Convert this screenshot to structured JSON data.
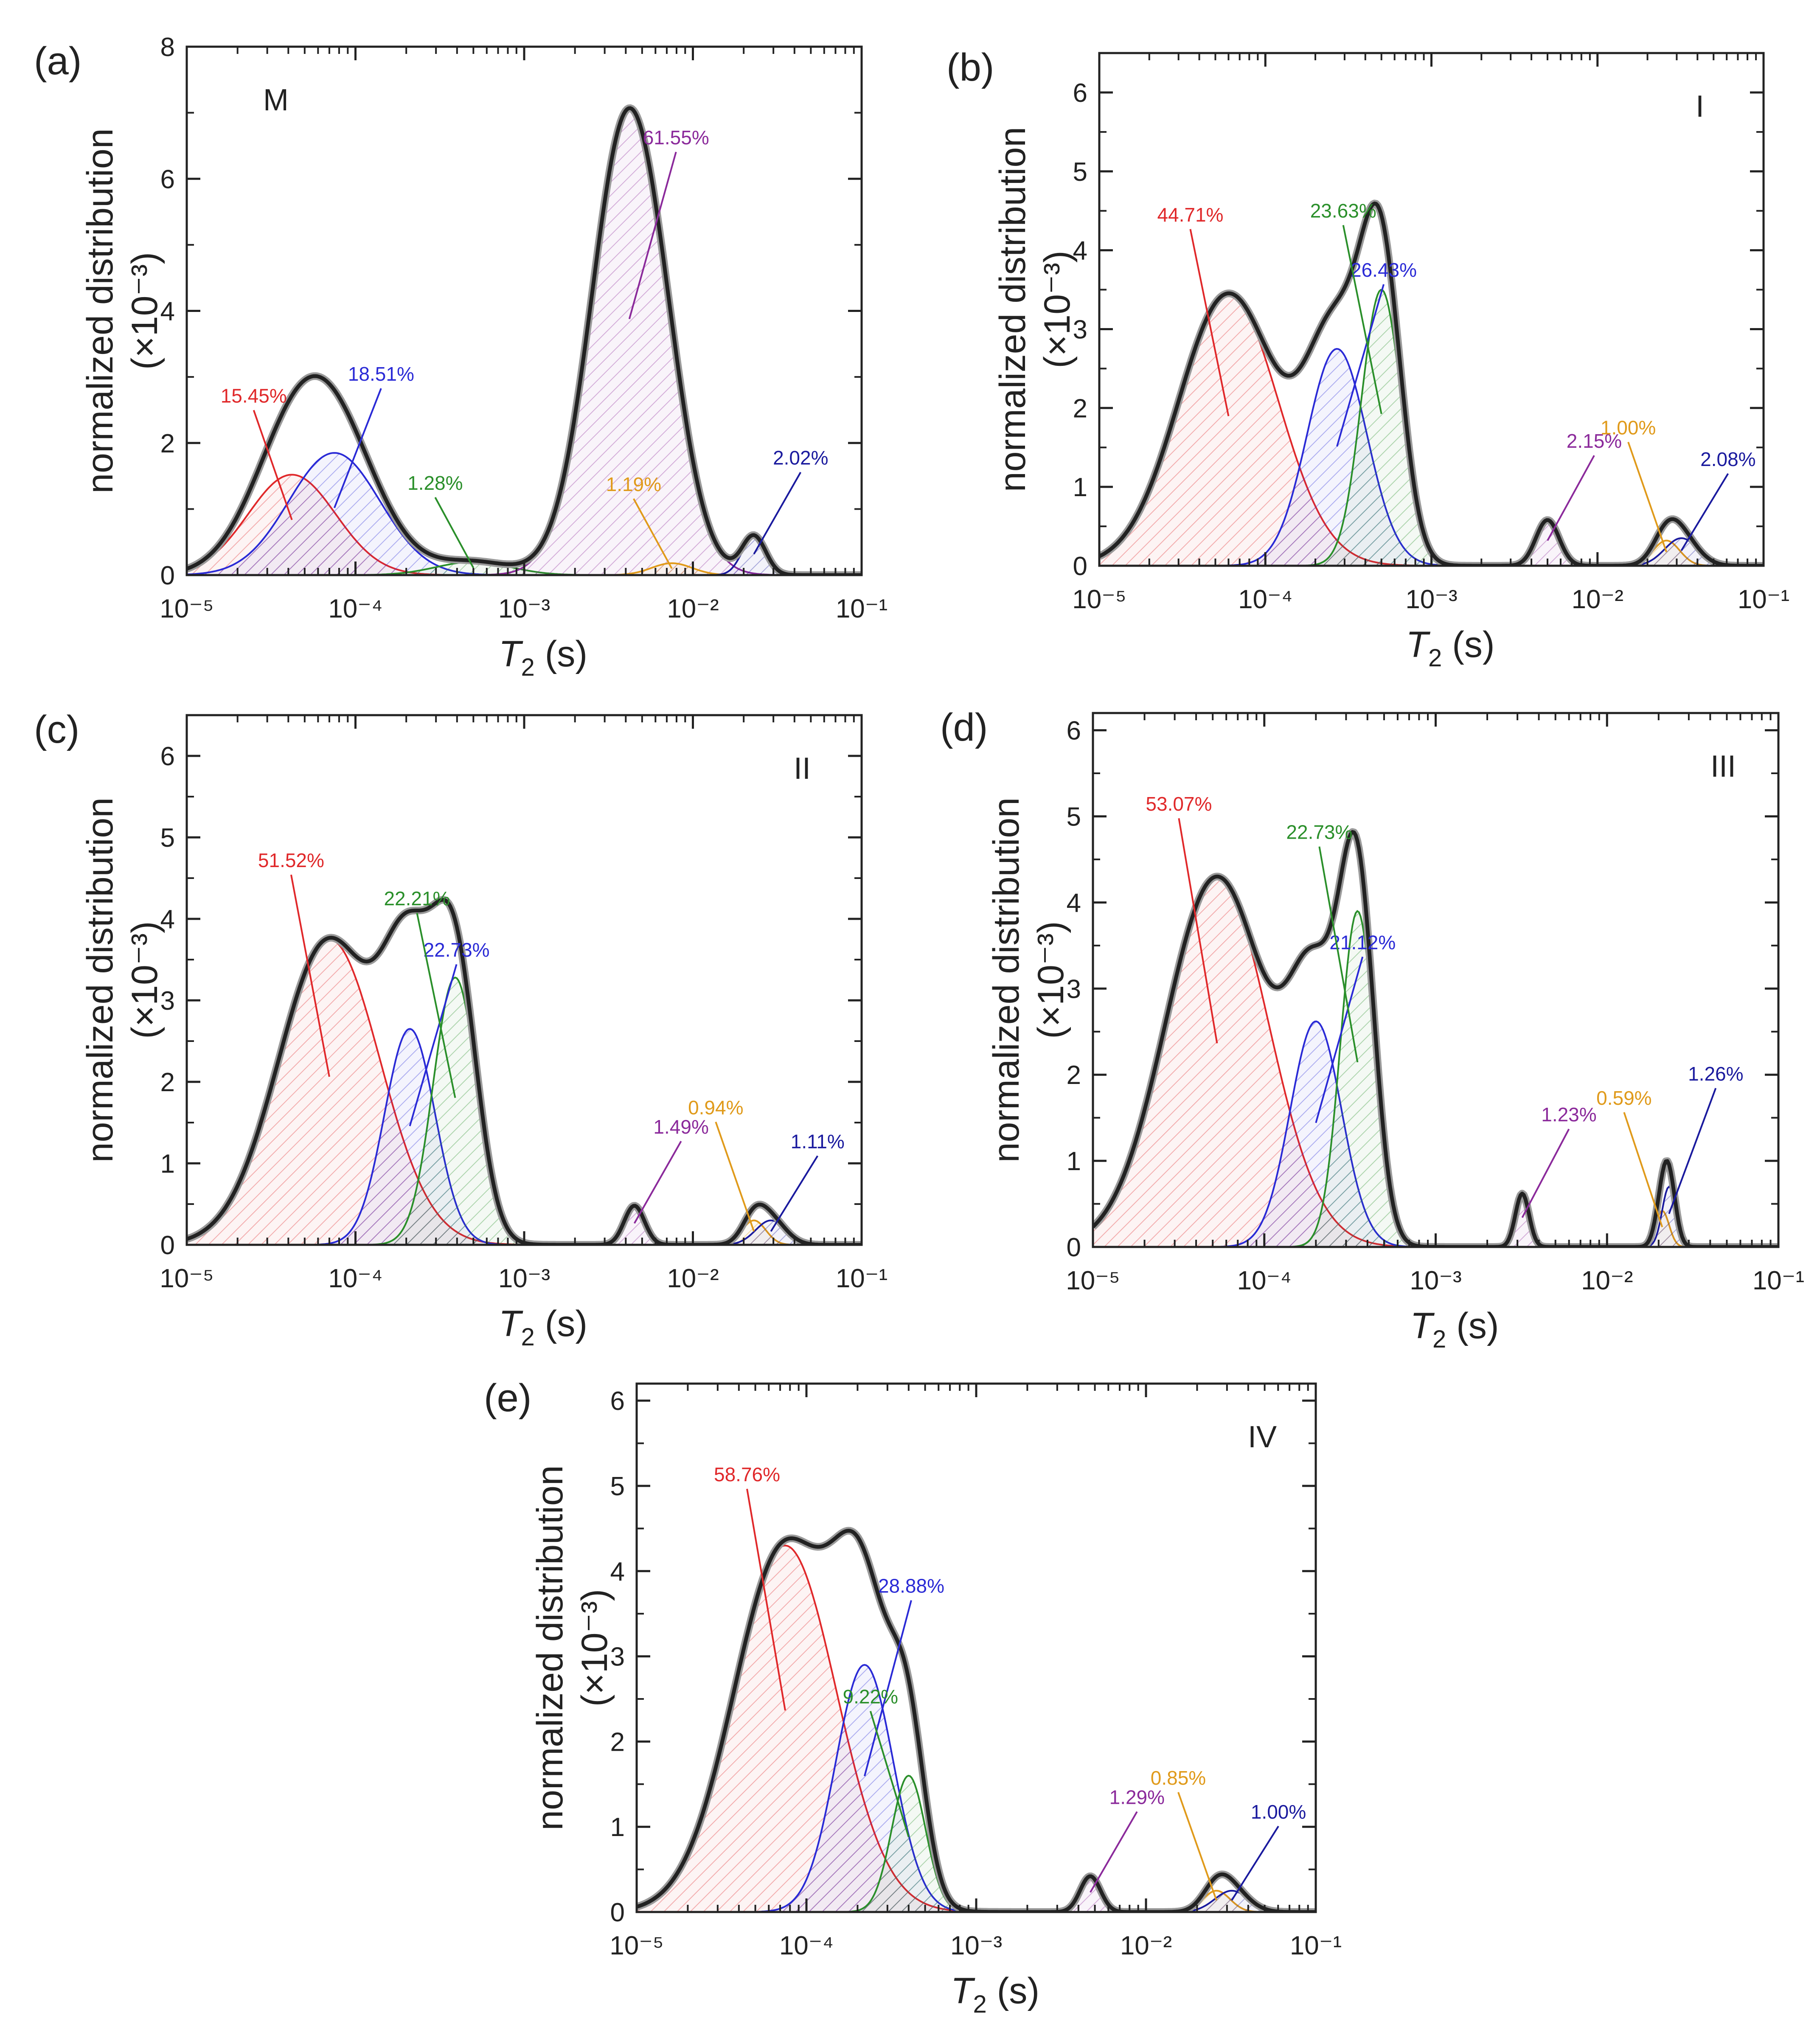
{
  "figure": {
    "xlabel_main": "T",
    "xlabel_sub": "2",
    "xlabel_unit": " (s)",
    "ylabel_line1": "normalized distribution",
    "ylabel_line2": "(×10⁻³)",
    "x_tick_labels": [
      "10⁻⁵",
      "10⁻⁴",
      "10⁻³",
      "10⁻²",
      "10⁻¹"
    ]
  },
  "colors": {
    "total": "#222222",
    "red": "#e0282a",
    "blue": "#2a2ad6",
    "green": "#2a8f2a",
    "purple": "#8b2a9b",
    "orange": "#e09a1a",
    "navy": "#1a1a9e"
  },
  "chart_data": [
    {
      "type": "line",
      "panel": "(a)",
      "sample": "M",
      "xscale": "log",
      "xlim": [
        1e-05,
        0.1
      ],
      "ylim": [
        0,
        8
      ],
      "y_ticks": [
        0,
        2,
        4,
        6,
        8
      ],
      "peaks": [
        {
          "color": "red",
          "center": 4.2e-05,
          "height": 1.52,
          "width": 0.26,
          "label": "15.45%"
        },
        {
          "color": "blue",
          "center": 7.5e-05,
          "height": 1.85,
          "width": 0.27,
          "label": "18.51%"
        },
        {
          "color": "green",
          "center": 0.0005,
          "height": 0.2,
          "width": 0.22,
          "label": "1.28%"
        },
        {
          "color": "purple",
          "center": 0.0042,
          "height": 7.05,
          "width": 0.22,
          "label": "61.55%"
        },
        {
          "color": "orange",
          "center": 0.0075,
          "height": 0.18,
          "width": 0.12,
          "label": "1.19%"
        },
        {
          "color": "navy",
          "center": 0.023,
          "height": 0.58,
          "width": 0.07,
          "label": "2.02%"
        }
      ]
    },
    {
      "type": "line",
      "panel": "(b)",
      "sample": "I",
      "xscale": "log",
      "xlim": [
        1e-05,
        0.1
      ],
      "ylim": [
        0,
        6.5
      ],
      "y_ticks": [
        0,
        1,
        2,
        3,
        4,
        5,
        6
      ],
      "peaks": [
        {
          "color": "red",
          "center": 6e-05,
          "height": 3.45,
          "width": 0.3,
          "label": "44.71%"
        },
        {
          "color": "blue",
          "center": 0.00027,
          "height": 2.75,
          "width": 0.18,
          "label": "26.43%"
        },
        {
          "color": "green",
          "center": 0.0005,
          "height": 3.5,
          "width": 0.12,
          "label": "23.63%"
        },
        {
          "color": "purple",
          "center": 0.005,
          "height": 0.58,
          "width": 0.07,
          "label": "2.15%"
        },
        {
          "color": "orange",
          "center": 0.026,
          "height": 0.32,
          "width": 0.08,
          "label": "1.00%"
        },
        {
          "color": "navy",
          "center": 0.032,
          "height": 0.35,
          "width": 0.1,
          "label": "2.08%"
        }
      ]
    },
    {
      "type": "line",
      "panel": "(c)",
      "sample": "II",
      "xscale": "log",
      "xlim": [
        1e-05,
        0.1
      ],
      "ylim": [
        0,
        6.5
      ],
      "y_ticks": [
        0,
        1,
        2,
        3,
        4,
        5,
        6
      ],
      "peaks": [
        {
          "color": "red",
          "center": 7e-05,
          "height": 3.75,
          "width": 0.3,
          "label": "51.52%"
        },
        {
          "color": "blue",
          "center": 0.00021,
          "height": 2.65,
          "width": 0.15,
          "label": "22.73%"
        },
        {
          "color": "green",
          "center": 0.00039,
          "height": 3.28,
          "width": 0.13,
          "label": "22.21%"
        },
        {
          "color": "purple",
          "center": 0.0045,
          "height": 0.48,
          "width": 0.06,
          "label": "1.49%"
        },
        {
          "color": "orange",
          "center": 0.023,
          "height": 0.3,
          "width": 0.07,
          "label": "0.94%"
        },
        {
          "color": "navy",
          "center": 0.029,
          "height": 0.3,
          "width": 0.09,
          "label": "1.11%"
        }
      ]
    },
    {
      "type": "line",
      "panel": "(d)",
      "sample": "III",
      "xscale": "log",
      "xlim": [
        1e-05,
        0.1
      ],
      "ylim": [
        0,
        6.2
      ],
      "y_ticks": [
        0,
        1,
        2,
        3,
        4,
        5,
        6
      ],
      "peaks": [
        {
          "color": "red",
          "center": 5.3e-05,
          "height": 4.3,
          "width": 0.3,
          "label": "53.07%"
        },
        {
          "color": "blue",
          "center": 0.0002,
          "height": 2.62,
          "width": 0.15,
          "label": "21.12%"
        },
        {
          "color": "green",
          "center": 0.00035,
          "height": 3.9,
          "width": 0.1,
          "label": "22.73%"
        },
        {
          "color": "purple",
          "center": 0.0032,
          "height": 0.62,
          "width": 0.04,
          "label": "1.23%"
        },
        {
          "color": "orange",
          "center": 0.021,
          "height": 0.42,
          "width": 0.04,
          "label": "0.59%"
        },
        {
          "color": "navy",
          "center": 0.023,
          "height": 0.7,
          "width": 0.04,
          "label": "1.26%"
        }
      ]
    },
    {
      "type": "line",
      "panel": "(e)",
      "sample": "IV",
      "xscale": "log",
      "xlim": [
        1e-05,
        0.1
      ],
      "ylim": [
        0,
        6.2
      ],
      "y_ticks": [
        0,
        1,
        2,
        3,
        4,
        5,
        6
      ],
      "peaks": [
        {
          "color": "red",
          "center": 7.5e-05,
          "height": 4.3,
          "width": 0.3,
          "label": "58.76%"
        },
        {
          "color": "blue",
          "center": 0.00022,
          "height": 2.9,
          "width": 0.17,
          "label": "28.88%"
        },
        {
          "color": "green",
          "center": 0.0004,
          "height": 1.6,
          "width": 0.1,
          "label": "9.22%"
        },
        {
          "color": "purple",
          "center": 0.0047,
          "height": 0.42,
          "width": 0.06,
          "label": "1.29%"
        },
        {
          "color": "orange",
          "center": 0.026,
          "height": 0.25,
          "width": 0.08,
          "label": "0.85%"
        },
        {
          "color": "navy",
          "center": 0.032,
          "height": 0.25,
          "width": 0.1,
          "label": "1.00%"
        }
      ]
    }
  ]
}
